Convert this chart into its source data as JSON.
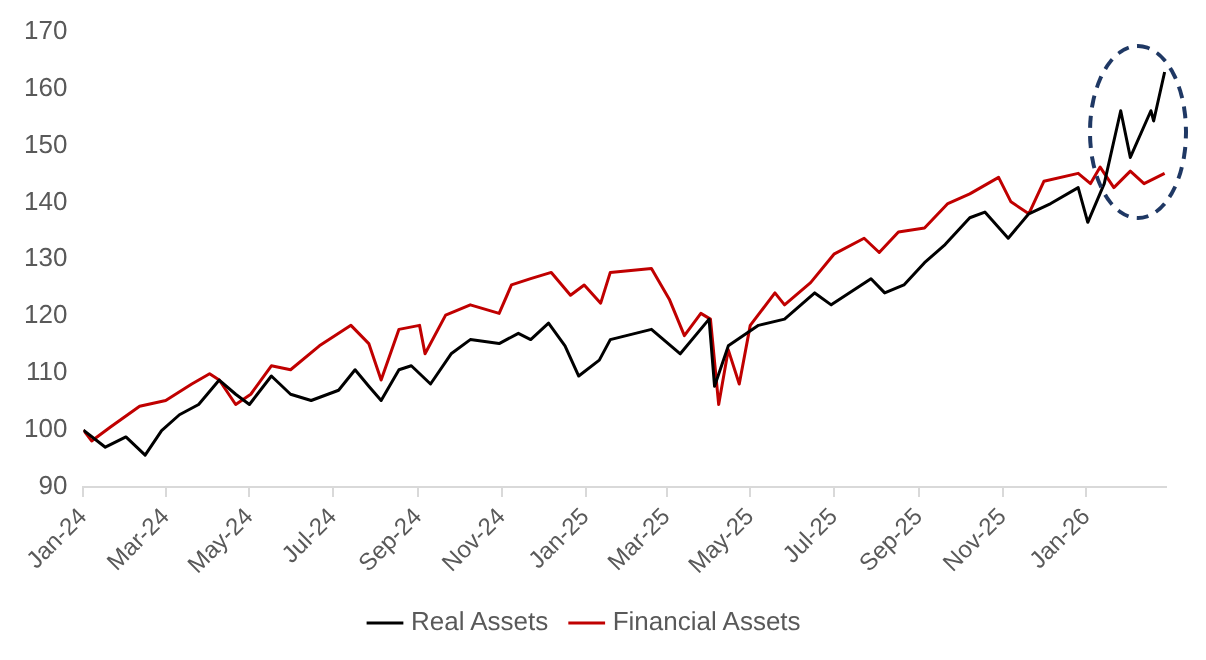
{
  "chart_data": {
    "type": "line",
    "xlim": [
      "2024-01-01",
      "2026-02-28"
    ],
    "xticks": [
      {
        "value": "2024-01-01",
        "label": "Jan-24"
      },
      {
        "value": "2024-03-01",
        "label": "Mar-24"
      },
      {
        "value": "2024-05-01",
        "label": "May-24"
      },
      {
        "value": "2024-07-01",
        "label": "Jul-24"
      },
      {
        "value": "2024-09-01",
        "label": "Sep-24"
      },
      {
        "value": "2024-11-01",
        "label": "Nov-24"
      },
      {
        "value": "2025-01-01",
        "label": "Jan-25"
      },
      {
        "value": "2025-03-01",
        "label": "Mar-25"
      },
      {
        "value": "2025-05-01",
        "label": "May-25"
      },
      {
        "value": "2025-07-01",
        "label": "Jul-25"
      },
      {
        "value": "2025-09-01",
        "label": "Sep-25"
      },
      {
        "value": "2025-11-01",
        "label": "Nov-25"
      },
      {
        "value": "2026-01-01",
        "label": "Jan-26"
      }
    ],
    "ylim": [
      90,
      170
    ],
    "yticks": [
      90,
      100,
      110,
      120,
      130,
      140,
      150,
      160,
      170
    ],
    "grid": false,
    "legend": "bottom",
    "marker": "none",
    "line_style": "solid",
    "series": [
      {
        "name": "Real Assets",
        "color": "#000000",
        "x": [
          "2024-01-01",
          "2024-01-17",
          "2024-02-01",
          "2024-02-15",
          "2024-02-27",
          "2024-03-11",
          "2024-03-25",
          "2024-04-09",
          "2024-04-21",
          "2024-05-01",
          "2024-05-17",
          "2024-05-31",
          "2024-06-15",
          "2024-07-05",
          "2024-07-17",
          "2024-07-27",
          "2024-08-05",
          "2024-08-18",
          "2024-08-27",
          "2024-09-10",
          "2024-09-25",
          "2024-10-09",
          "2024-10-30",
          "2024-11-13",
          "2024-11-22",
          "2024-12-05",
          "2024-12-17",
          "2024-12-27",
          "2025-01-11",
          "2025-01-19",
          "2025-02-18",
          "2025-03-11",
          "2025-04-01",
          "2025-04-05",
          "2025-04-15",
          "2025-05-07",
          "2025-05-26",
          "2025-06-17",
          "2025-06-29",
          "2025-07-28",
          "2025-08-07",
          "2025-08-21",
          "2025-09-05",
          "2025-09-20",
          "2025-10-08",
          "2025-10-19",
          "2025-11-05",
          "2025-11-20",
          "2025-12-06",
          "2025-12-26",
          "2026-01-02",
          "2026-01-14",
          "2026-01-26",
          "2026-02-02",
          "2026-02-17",
          "2026-02-19",
          "2026-02-27"
        ],
        "values": [
          100,
          97,
          98.8,
          95.6,
          99.9,
          102.7,
          104.5,
          108.8,
          106.3,
          104.5,
          109.5,
          106.3,
          105.2,
          107,
          110.6,
          107.7,
          105.2,
          110.6,
          111.3,
          108.1,
          113.4,
          115.9,
          115.2,
          117,
          115.9,
          118.8,
          114.8,
          109.5,
          112.3,
          115.9,
          117.7,
          113.4,
          119.5,
          107.7,
          114.8,
          118.4,
          119.5,
          124.1,
          122,
          126.6,
          124.1,
          125.5,
          129.4,
          132.6,
          137.3,
          138.3,
          133.7,
          138,
          139.8,
          142.6,
          136.5,
          143.3,
          156.1,
          147.9,
          156.1,
          154.3,
          162.9
        ]
      },
      {
        "name": "Financial Assets",
        "color": "#c00000",
        "x": [
          "2024-01-01",
          "2024-01-07",
          "2024-01-21",
          "2024-02-11",
          "2024-03-01",
          "2024-03-20",
          "2024-04-02",
          "2024-04-09",
          "2024-04-21",
          "2024-05-02",
          "2024-05-17",
          "2024-05-31",
          "2024-06-21",
          "2024-07-14",
          "2024-07-27",
          "2024-08-05",
          "2024-08-18",
          "2024-09-02",
          "2024-09-06",
          "2024-09-21",
          "2024-10-09",
          "2024-10-30",
          "2024-11-08",
          "2024-11-22",
          "2024-12-07",
          "2024-12-21",
          "2024-12-31",
          "2025-01-12",
          "2025-01-19",
          "2025-02-18",
          "2025-03-03",
          "2025-03-14",
          "2025-03-26",
          "2025-04-02",
          "2025-04-08",
          "2025-04-15",
          "2025-04-23",
          "2025-05-01",
          "2025-05-19",
          "2025-05-26",
          "2025-06-14",
          "2025-07-01",
          "2025-07-23",
          "2025-08-03",
          "2025-08-17",
          "2025-09-05",
          "2025-09-22",
          "2025-10-08",
          "2025-10-29",
          "2025-11-07",
          "2025-11-20",
          "2025-12-01",
          "2025-12-26",
          "2026-01-04",
          "2026-01-11",
          "2026-01-21",
          "2026-02-02",
          "2026-02-12",
          "2026-02-27"
        ],
        "values": [
          100,
          98.1,
          100.6,
          104.2,
          105.2,
          108.1,
          109.9,
          108.8,
          104.5,
          106.3,
          111.3,
          110.6,
          114.8,
          118.4,
          115.2,
          108.8,
          117.7,
          118.4,
          113.4,
          120.2,
          122,
          120.5,
          125.5,
          126.6,
          127.7,
          123.7,
          125.5,
          122.3,
          127.7,
          128.4,
          123,
          116.6,
          120.5,
          119.5,
          104.5,
          114.1,
          108.1,
          118.4,
          124.1,
          122,
          125.9,
          130.9,
          133.7,
          131.2,
          134.8,
          135.5,
          139.8,
          141.5,
          144.4,
          140.1,
          138,
          143.7,
          145.1,
          143.3,
          146.2,
          142.6,
          145.5,
          143.3,
          145.1
        ]
      }
    ]
  }
}
